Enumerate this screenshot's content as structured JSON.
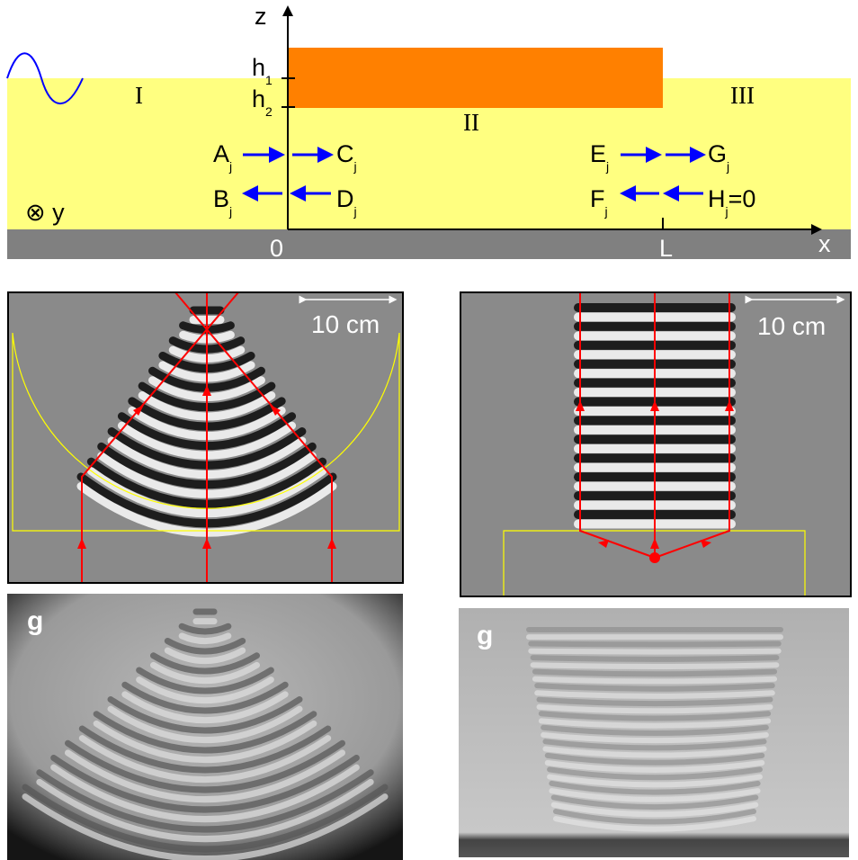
{
  "schematic": {
    "axis_z": "z",
    "axis_x": "x",
    "axis_y": "y",
    "origin": "0",
    "length": "L",
    "h1": "h",
    "h1_sub": "1",
    "h2": "h",
    "h2_sub": "2",
    "regions": [
      "I",
      "II",
      "III"
    ],
    "amplitudes": [
      {
        "base": "A",
        "sub": "j"
      },
      {
        "base": "C",
        "sub": "j"
      },
      {
        "base": "B",
        "sub": "j"
      },
      {
        "base": "D",
        "sub": "j"
      },
      {
        "base": "E",
        "sub": "j"
      },
      {
        "base": "G",
        "sub": "j"
      },
      {
        "base": "F",
        "sub": "j"
      },
      {
        "base": "H",
        "sub": "j"
      }
    ],
    "h_value": "=0",
    "colors": {
      "water": "#ffff80",
      "plate": "#ff8000",
      "bottom": "#808080",
      "wave": "#0000ff",
      "arrows": "#0000ff"
    }
  },
  "panels": {
    "left_sim": {
      "scale_label": "10 cm"
    },
    "right_sim": {
      "scale_label": "10 cm"
    },
    "left_photo": {
      "label": "g"
    },
    "right_photo": {
      "label": "g"
    },
    "ray_color": "#ff0000",
    "outline_color": "#ffff00"
  }
}
